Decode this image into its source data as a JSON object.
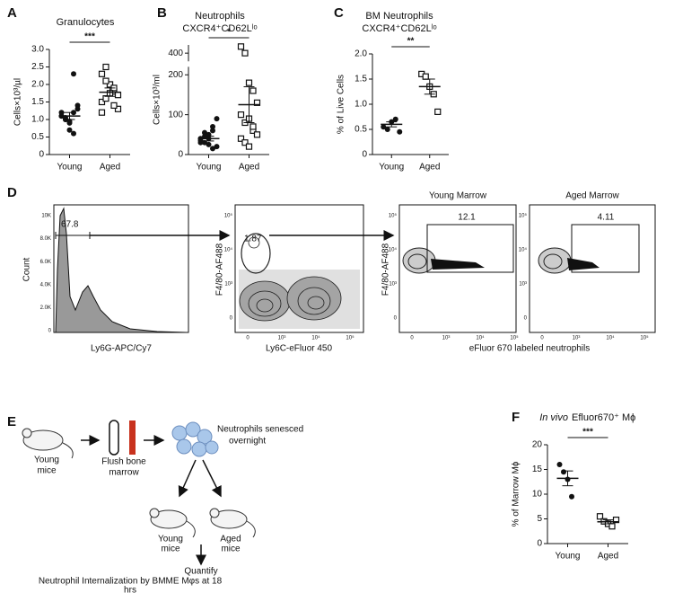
{
  "chart_data": [
    {
      "type": "dot",
      "panel": "A",
      "title": [
        "Granulocytes"
      ],
      "ylabel": "Cells×10³/µl",
      "categories": [
        "Young",
        "Aged"
      ],
      "markers": [
        "circle",
        "square"
      ],
      "color": "#111111",
      "points": [
        [
          1.1,
          1.0,
          0.9,
          1.2,
          1.3,
          1.1,
          1.0,
          0.7,
          0.6,
          1.4,
          1.2,
          1.05,
          0.95,
          2.3
        ],
        [
          2.3,
          2.5,
          2.0,
          1.8,
          1.7,
          1.5,
          1.6,
          2.0,
          1.9,
          1.3,
          1.2,
          2.1,
          1.75,
          1.4
        ]
      ],
      "means": [
        1.1,
        1.78
      ],
      "sems": [
        0.1,
        0.12
      ],
      "significance": "***",
      "ylim": [
        0,
        3
      ],
      "yticks": [
        0,
        0.5,
        {
          "value": 1,
          "label": "1.0"
        },
        1.5,
        {
          "value": 2,
          "label": "2.0"
        },
        2.5,
        {
          "value": 3,
          "label": "3.0"
        }
      ]
    },
    {
      "type": "dot",
      "panel": "B",
      "title": [
        "Neutrophils",
        "CXCR4⁺CD62Lˡᵒ"
      ],
      "ylabel": "Cells×10³/ml",
      "categories": [
        "Young",
        "Aged"
      ],
      "markers": [
        "circle",
        "square"
      ],
      "color": "#111111",
      "points": [
        [
          40,
          30,
          50,
          60,
          20,
          35,
          45,
          25,
          70,
          90,
          30,
          55,
          40,
          15
        ],
        [
          440,
          400,
          180,
          160,
          130,
          100,
          80,
          90,
          60,
          50,
          40,
          30,
          20,
          70
        ]
      ],
      "means": [
        40,
        125
      ],
      "sems": [
        6,
        45
      ],
      "significance": "*",
      "ylim": [
        0,
        450
      ],
      "axis_break": [
        220,
        350
      ],
      "yticks": [
        0,
        100,
        200,
        400
      ]
    },
    {
      "type": "dot",
      "panel": "C",
      "title": [
        "BM Neutrophils",
        "CXCR4⁺CD62Lˡᵒ"
      ],
      "ylabel": "% of Live Cells",
      "categories": [
        "Young",
        "Aged"
      ],
      "markers": [
        "circle",
        "square"
      ],
      "color": "#111111",
      "points": [
        [
          0.55,
          0.5,
          0.65,
          0.7,
          0.45
        ],
        [
          1.6,
          1.55,
          1.35,
          1.2,
          0.85
        ]
      ],
      "means": [
        0.6,
        1.35
      ],
      "sems": [
        0.05,
        0.15
      ],
      "significance": "**",
      "ylim": [
        0,
        2
      ],
      "yticks": [
        0,
        0.5,
        {
          "value": 1,
          "label": "1.0"
        },
        1.5,
        {
          "value": 2,
          "label": "2.0"
        }
      ]
    },
    {
      "type": "dot",
      "panel": "F",
      "title_italic": "In vivo",
      "title": [
        "Efluor670⁺ Mϕ"
      ],
      "ylabel": "% of Marrow Mϕ",
      "categories": [
        "Young",
        "Aged"
      ],
      "markers": [
        "circle",
        "square"
      ],
      "color": "#111111",
      "points": [
        [
          16,
          14.5,
          13,
          9.5
        ],
        [
          5.5,
          4.5,
          4,
          3.5,
          4.8
        ]
      ],
      "means": [
        13.2,
        4.4
      ],
      "sems": [
        1.5,
        0.4
      ],
      "significance": "***",
      "ylim": [
        0,
        20
      ],
      "yticks": [
        0,
        5,
        10,
        15,
        20
      ]
    }
  ],
  "flow": {
    "panel": "D",
    "count": "Count",
    "ly6g": "Ly6G-APC/Cy7",
    "gate1": "67.8",
    "f480": "F4/80-AF488",
    "gate2": "1.87",
    "ly6c": "Ly6C-eFluor 450",
    "young": "Young Marrow",
    "aged": "Aged Marrow",
    "gate3": "12.1",
    "gate4": "4.11",
    "efluor": "eFluor 670 labeled neutrophils",
    "count_ticks": [
      "10K",
      "8.0K",
      "6.0K",
      "4.0K",
      "2.0K",
      "0"
    ],
    "log_ticks": [
      "10⁵",
      "10⁴",
      "10³",
      "0"
    ]
  },
  "schematic": {
    "panel": "E",
    "young_mice": [
      "Young",
      "mice"
    ],
    "flush": [
      "Flush bone",
      "marrow"
    ],
    "senesced": [
      "Neutrophils senesced",
      "overnight"
    ],
    "young_mice2": [
      "Young",
      "mice"
    ],
    "aged_mice": [
      "Aged",
      "mice"
    ],
    "quantify": "Quantify",
    "internalization": [
      "Neutrophil  Internalization by BMME Mφs at 18",
      "hrs"
    ]
  }
}
